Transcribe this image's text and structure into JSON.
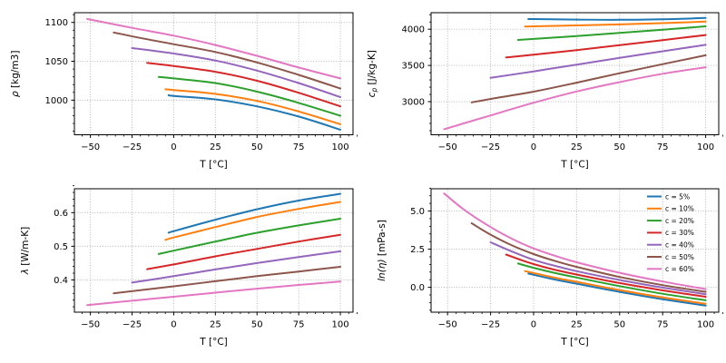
{
  "figure": {
    "background": "#ffffff",
    "text_color": "#000000",
    "grid_color": "#b0b0b0",
    "spine_color": "#000000"
  },
  "legend": {
    "location": "upper right",
    "entries": [
      {
        "label": "c = 5%",
        "color": "#1f77b4"
      },
      {
        "label": "c = 10%",
        "color": "#ff7f0e"
      },
      {
        "label": "c = 20%",
        "color": "#2ca02c"
      },
      {
        "label": "c = 30%",
        "color": "#d62728"
      },
      {
        "label": "c = 40%",
        "color": "#9467bd"
      },
      {
        "label": "c = 50%",
        "color": "#8c564b"
      },
      {
        "label": "c = 60%",
        "color": "#e377c2"
      }
    ]
  },
  "chart_data": [
    {
      "id": "density",
      "type": "line",
      "title": "",
      "xlabel": "T [°C]",
      "ylabel": "ρ [kg/m3]",
      "ylabel_parts": [
        {
          "t": "ρ",
          "it": true
        },
        {
          "t": " [kg/m3]"
        }
      ],
      "xlim": [
        -59.6,
        107.6
      ],
      "ylim": [
        955.5,
        1112.5
      ],
      "xticks": [
        -50,
        -25,
        0,
        25,
        50,
        75,
        100
      ],
      "xtick_labels": [
        "−50",
        "−25",
        "0",
        "25",
        "50",
        "75",
        "100"
      ],
      "yticks": [
        1000,
        1050,
        1100
      ],
      "ytick_labels": [
        "1000",
        "1050",
        "1100"
      ],
      "minor_x_step": 5,
      "minor_y_step": 10,
      "grid": true,
      "series": [
        {
          "name": "c = 5%",
          "points": [
            [
              -3,
              1006.5
            ],
            [
              0,
              1005.5
            ],
            [
              25,
              1001
            ],
            [
              50,
              992
            ],
            [
              75,
              979
            ],
            [
              100,
              962
            ]
          ]
        },
        {
          "name": "c = 10%",
          "points": [
            [
              -5,
              1014
            ],
            [
              0,
              1013
            ],
            [
              25,
              1008
            ],
            [
              50,
              999
            ],
            [
              75,
              985.5
            ],
            [
              100,
              969
            ]
          ]
        },
        {
          "name": "c = 20%",
          "points": [
            [
              -9,
              1030
            ],
            [
              0,
              1028
            ],
            [
              25,
              1022
            ],
            [
              50,
              1011
            ],
            [
              75,
              996.5
            ],
            [
              100,
              980
            ]
          ]
        },
        {
          "name": "c = 30%",
          "points": [
            [
              -16,
              1048
            ],
            [
              0,
              1044
            ],
            [
              25,
              1036.5
            ],
            [
              50,
              1025
            ],
            [
              75,
              1009.5
            ],
            [
              100,
              992
            ]
          ]
        },
        {
          "name": "c = 40%",
          "points": [
            [
              -25,
              1067
            ],
            [
              0,
              1060
            ],
            [
              25,
              1051
            ],
            [
              50,
              1038
            ],
            [
              75,
              1022
            ],
            [
              100,
              1004
            ]
          ]
        },
        {
          "name": "c = 50%",
          "points": [
            [
              -36,
              1087
            ],
            [
              -20,
              1080
            ],
            [
              0,
              1072
            ],
            [
              25,
              1062
            ],
            [
              50,
              1048.5
            ],
            [
              75,
              1032.5
            ],
            [
              100,
              1015
            ]
          ]
        },
        {
          "name": "c = 60%",
          "points": [
            [
              -52,
              1104.5
            ],
            [
              -25,
              1093
            ],
            [
              0,
              1083
            ],
            [
              25,
              1071
            ],
            [
              50,
              1057
            ],
            [
              75,
              1042
            ],
            [
              100,
              1028
            ]
          ]
        }
      ]
    },
    {
      "id": "heat-capacity",
      "type": "line",
      "title": "",
      "xlabel": "T [°C]",
      "ylabel": "cp [J/kg-K]",
      "ylabel_parts": [
        {
          "t": "c",
          "it": true
        },
        {
          "t": "p",
          "it": true,
          "sub": true
        },
        {
          "t": " [J/kg-K]"
        }
      ],
      "xlim": [
        -59.6,
        107.6
      ],
      "ylim": [
        2543,
        4228
      ],
      "xticks": [
        -50,
        -25,
        0,
        25,
        50,
        75,
        100
      ],
      "xtick_labels": [
        "−50",
        "−25",
        "0",
        "25",
        "50",
        "75",
        "100"
      ],
      "yticks": [
        3000,
        3500,
        4000
      ],
      "ytick_labels": [
        "3000",
        "3500",
        "4000"
      ],
      "minor_x_step": 5,
      "minor_y_step": 100,
      "grid": true,
      "series": [
        {
          "name": "c = 5%",
          "points": [
            [
              -3,
              4141
            ],
            [
              0,
              4140
            ],
            [
              25,
              4133
            ],
            [
              50,
              4130
            ],
            [
              75,
              4138
            ],
            [
              100,
              4155
            ]
          ]
        },
        {
          "name": "c = 10%",
          "points": [
            [
              -5,
              4036
            ],
            [
              0,
              4040
            ],
            [
              25,
              4052
            ],
            [
              50,
              4066
            ],
            [
              75,
              4084
            ],
            [
              100,
              4105
            ]
          ]
        },
        {
          "name": "c = 20%",
          "points": [
            [
              -9,
              3852
            ],
            [
              0,
              3866
            ],
            [
              25,
              3906
            ],
            [
              50,
              3950
            ],
            [
              75,
              3994
            ],
            [
              100,
              4040
            ]
          ]
        },
        {
          "name": "c = 30%",
          "points": [
            [
              -16,
              3610
            ],
            [
              0,
              3648
            ],
            [
              25,
              3712
            ],
            [
              50,
              3780
            ],
            [
              75,
              3850
            ],
            [
              100,
              3920
            ]
          ]
        },
        {
          "name": "c = 40%",
          "points": [
            [
              -25,
              3330
            ],
            [
              0,
              3418
            ],
            [
              25,
              3512
            ],
            [
              50,
              3605
            ],
            [
              75,
              3696
            ],
            [
              100,
              3785
            ]
          ]
        },
        {
          "name": "c = 50%",
          "points": [
            [
              -36,
              2990
            ],
            [
              -20,
              3058
            ],
            [
              0,
              3138
            ],
            [
              25,
              3262
            ],
            [
              50,
              3392
            ],
            [
              75,
              3518
            ],
            [
              100,
              3640
            ]
          ]
        },
        {
          "name": "c = 60%",
          "points": [
            [
              -52,
              2620
            ],
            [
              -25,
              2810
            ],
            [
              0,
              2985
            ],
            [
              25,
              3140
            ],
            [
              50,
              3270
            ],
            [
              75,
              3385
            ],
            [
              100,
              3475
            ]
          ]
        }
      ]
    },
    {
      "id": "thermal-conductivity",
      "type": "line",
      "title": "",
      "xlabel": "T [°C]",
      "ylabel": "λ [W/m-K]",
      "ylabel_parts": [
        {
          "t": "λ",
          "it": true
        },
        {
          "t": " [W/m-K]"
        }
      ],
      "xlim": [
        -59.6,
        107.6
      ],
      "ylim": [
        0.304,
        0.671
      ],
      "xticks": [
        -50,
        -25,
        0,
        25,
        50,
        75,
        100
      ],
      "xtick_labels": [
        "−50",
        "−25",
        "0",
        "25",
        "50",
        "75",
        "100"
      ],
      "yticks": [
        0.4,
        0.5,
        0.6
      ],
      "ytick_labels": [
        "0.4",
        "0.5",
        "0.6"
      ],
      "minor_x_step": 5,
      "minor_y_step": 0.02,
      "grid": true,
      "series": [
        {
          "name": "c = 5%",
          "points": [
            [
              -3,
              0.54
            ],
            [
              0,
              0.545
            ],
            [
              25,
              0.579
            ],
            [
              50,
              0.61
            ],
            [
              75,
              0.636
            ],
            [
              100,
              0.656
            ]
          ]
        },
        {
          "name": "c = 10%",
          "points": [
            [
              -5,
              0.519
            ],
            [
              0,
              0.526
            ],
            [
              25,
              0.557
            ],
            [
              50,
              0.587
            ],
            [
              75,
              0.611
            ],
            [
              100,
              0.632
            ]
          ]
        },
        {
          "name": "c = 20%",
          "points": [
            [
              -9,
              0.477
            ],
            [
              0,
              0.487
            ],
            [
              25,
              0.514
            ],
            [
              50,
              0.54
            ],
            [
              75,
              0.562
            ],
            [
              100,
              0.582
            ]
          ]
        },
        {
          "name": "c = 30%",
          "points": [
            [
              -16,
              0.432
            ],
            [
              0,
              0.446
            ],
            [
              25,
              0.47
            ],
            [
              50,
              0.492
            ],
            [
              75,
              0.514
            ],
            [
              100,
              0.534
            ]
          ]
        },
        {
          "name": "c = 40%",
          "points": [
            [
              -25,
              0.392
            ],
            [
              0,
              0.411
            ],
            [
              25,
              0.431
            ],
            [
              50,
              0.45
            ],
            [
              75,
              0.468
            ],
            [
              100,
              0.485
            ]
          ]
        },
        {
          "name": "c = 50%",
          "points": [
            [
              -36,
              0.36
            ],
            [
              0,
              0.381
            ],
            [
              25,
              0.396
            ],
            [
              50,
              0.411
            ],
            [
              75,
              0.425
            ],
            [
              100,
              0.439
            ]
          ]
        },
        {
          "name": "c = 60%",
          "points": [
            [
              -52,
              0.325
            ],
            [
              -25,
              0.338
            ],
            [
              0,
              0.35
            ],
            [
              25,
              0.362
            ],
            [
              50,
              0.374
            ],
            [
              75,
              0.385
            ],
            [
              100,
              0.395
            ]
          ]
        }
      ]
    },
    {
      "id": "log-viscosity",
      "type": "line",
      "title": "",
      "xlabel": "T [°C]",
      "ylabel": "ln(η) [mPa-s]",
      "ylabel_parts": [
        {
          "t": "ln(η)",
          "it": true
        },
        {
          "t": " [mPa-s]"
        }
      ],
      "xlim": [
        -59.6,
        107.6
      ],
      "ylim": [
        -1.63,
        6.46
      ],
      "xticks": [
        -50,
        -25,
        0,
        25,
        50,
        75,
        100
      ],
      "xtick_labels": [
        "−50",
        "−25",
        "0",
        "25",
        "50",
        "75",
        "100"
      ],
      "yticks": [
        0.0,
        2.5,
        5.0
      ],
      "ytick_labels": [
        "0.0",
        "2.5",
        "5.0"
      ],
      "minor_x_step": 5,
      "minor_y_step": 0.5,
      "grid": true,
      "show_legend": true,
      "series": [
        {
          "name": "c = 5%",
          "points": [
            [
              -3,
              0.9
            ],
            [
              0,
              0.82
            ],
            [
              12,
              0.52
            ],
            [
              25,
              0.24
            ],
            [
              50,
              -0.3
            ],
            [
              75,
              -0.78
            ],
            [
              100,
              -1.2
            ]
          ]
        },
        {
          "name": "c = 10%",
          "points": [
            [
              -5,
              1.06
            ],
            [
              0,
              0.94
            ],
            [
              12,
              0.64
            ],
            [
              25,
              0.36
            ],
            [
              50,
              -0.18
            ],
            [
              75,
              -0.66
            ],
            [
              100,
              -1.08
            ]
          ]
        },
        {
          "name": "c = 20%",
          "points": [
            [
              -9,
              1.56
            ],
            [
              0,
              1.28
            ],
            [
              12,
              0.95
            ],
            [
              25,
              0.64
            ],
            [
              50,
              0.08
            ],
            [
              75,
              -0.42
            ],
            [
              100,
              -0.85
            ]
          ]
        },
        {
          "name": "c = 30%",
          "points": [
            [
              -16,
              2.15
            ],
            [
              -8,
              1.82
            ],
            [
              0,
              1.52
            ],
            [
              12,
              1.16
            ],
            [
              25,
              0.84
            ],
            [
              50,
              0.28
            ],
            [
              75,
              -0.2
            ],
            [
              100,
              -0.62
            ]
          ]
        },
        {
          "name": "c = 40%",
          "points": [
            [
              -25,
              2.95
            ],
            [
              -12,
              2.32
            ],
            [
              0,
              1.8
            ],
            [
              12,
              1.42
            ],
            [
              25,
              1.06
            ],
            [
              50,
              0.48
            ],
            [
              75,
              -0.02
            ],
            [
              100,
              -0.45
            ]
          ]
        },
        {
          "name": "c = 50%",
          "points": [
            [
              -36,
              4.2
            ],
            [
              -25,
              3.45
            ],
            [
              -12,
              2.72
            ],
            [
              0,
              2.18
            ],
            [
              12,
              1.74
            ],
            [
              25,
              1.34
            ],
            [
              50,
              0.68
            ],
            [
              75,
              0.14
            ],
            [
              100,
              -0.3
            ]
          ]
        },
        {
          "name": "c = 60%",
          "points": [
            [
              -52,
              6.15
            ],
            [
              -40,
              5.05
            ],
            [
              -25,
              3.95
            ],
            [
              -12,
              3.15
            ],
            [
              0,
              2.55
            ],
            [
              12,
              2.08
            ],
            [
              25,
              1.64
            ],
            [
              50,
              0.95
            ],
            [
              75,
              0.38
            ],
            [
              100,
              -0.12
            ]
          ]
        }
      ]
    }
  ]
}
